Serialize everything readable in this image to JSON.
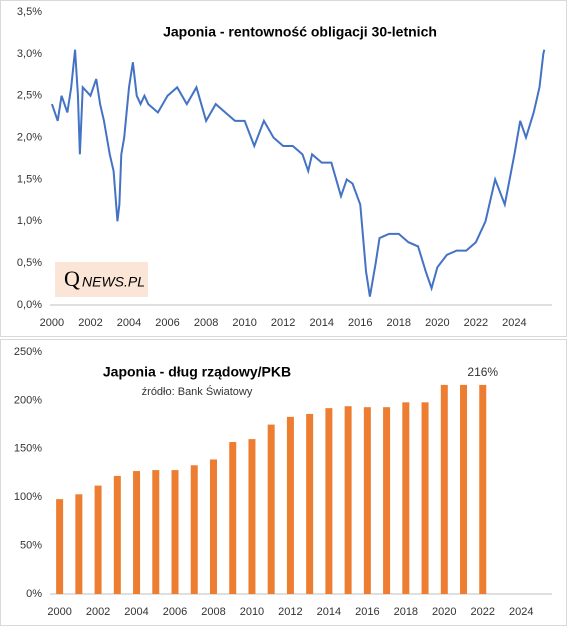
{
  "chart_data": [
    {
      "type": "line",
      "title": "Japonia  - rentowność obligacji 30-letnich",
      "color": "#4472c4",
      "x": [
        2000,
        2000.3,
        2000.5,
        2000.8,
        2001.0,
        2001.2,
        2001.35,
        2001.45,
        2001.6,
        2002.0,
        2002.3,
        2002.5,
        2002.7,
        2003.0,
        2003.2,
        2003.4,
        2003.5,
        2003.6,
        2003.75,
        2004.0,
        2004.2,
        2004.4,
        2004.6,
        2004.8,
        2005.0,
        2005.5,
        2006.0,
        2006.5,
        2007.0,
        2007.5,
        2008.0,
        2008.5,
        2009.0,
        2009.5,
        2010.0,
        2010.5,
        2011.0,
        2011.5,
        2012.0,
        2012.5,
        2013.0,
        2013.3,
        2013.5,
        2014.0,
        2014.5,
        2015.0,
        2015.3,
        2015.6,
        2016.0,
        2016.3,
        2016.5,
        2016.8,
        2017.0,
        2017.5,
        2018.0,
        2018.5,
        2019.0,
        2019.4,
        2019.7,
        2020.0,
        2020.5,
        2021.0,
        2021.5,
        2022.0,
        2022.5,
        2023.0,
        2023.5,
        2024.0,
        2024.3,
        2024.6,
        2025.0,
        2025.3,
        2025.5,
        2025.55
      ],
      "values": [
        2.4,
        2.2,
        2.5,
        2.3,
        2.6,
        3.05,
        2.5,
        1.8,
        2.6,
        2.5,
        2.7,
        2.4,
        2.2,
        1.8,
        1.6,
        1.0,
        1.2,
        1.8,
        2.0,
        2.6,
        2.9,
        2.5,
        2.4,
        2.5,
        2.4,
        2.3,
        2.5,
        2.6,
        2.4,
        2.6,
        2.2,
        2.4,
        2.3,
        2.2,
        2.2,
        1.9,
        2.2,
        2.0,
        1.9,
        1.9,
        1.8,
        1.6,
        1.8,
        1.7,
        1.7,
        1.3,
        1.5,
        1.45,
        1.2,
        0.4,
        0.1,
        0.5,
        0.8,
        0.85,
        0.85,
        0.75,
        0.7,
        0.4,
        0.2,
        0.45,
        0.6,
        0.65,
        0.65,
        0.75,
        1.0,
        1.5,
        1.2,
        1.8,
        2.2,
        2.0,
        2.3,
        2.6,
        3.0,
        3.05
      ],
      "xlim": [
        1999.9,
        2025.95
      ],
      "xticks": [
        2000,
        2002,
        2004,
        2006,
        2008,
        2010,
        2012,
        2014,
        2016,
        2018,
        2020,
        2022,
        2024
      ],
      "ylim": [
        0,
        3.5
      ],
      "yticks": [
        {
          "value": 0,
          "label": "0,0%"
        },
        {
          "value": 0.5,
          "label": "0,5%"
        },
        {
          "value": 1,
          "label": "1,0%"
        },
        {
          "value": 1.5,
          "label": "1,5%"
        },
        {
          "value": 2,
          "label": "2,0%"
        },
        {
          "value": 2.5,
          "label": "2,5%"
        },
        {
          "value": 3,
          "label": "3,0%"
        },
        {
          "value": 3.5,
          "label": "3,5%"
        }
      ]
    },
    {
      "type": "bar",
      "title": "Japonia  - dług rządowy/PKB",
      "subtitle": "źródło: Bank Światowy",
      "color": "#ed7d31",
      "x": [
        2000,
        2001,
        2002,
        2003,
        2004,
        2005,
        2006,
        2007,
        2008,
        2009,
        2010,
        2011,
        2012,
        2013,
        2014,
        2015,
        2016,
        2017,
        2018,
        2019,
        2020,
        2021,
        2022
      ],
      "values": [
        98,
        103,
        112,
        122,
        127,
        128,
        128,
        133,
        139,
        157,
        160,
        175,
        183,
        186,
        192,
        194,
        193,
        193,
        198,
        198,
        216,
        216,
        216
      ],
      "value_labels": [
        null,
        null,
        null,
        null,
        null,
        null,
        null,
        null,
        null,
        null,
        null,
        null,
        null,
        null,
        null,
        null,
        null,
        null,
        null,
        null,
        null,
        null,
        "216%"
      ],
      "xlim": [
        1999.5,
        2025.6
      ],
      "xticks": [
        2000,
        2002,
        2004,
        2006,
        2008,
        2010,
        2012,
        2014,
        2016,
        2018,
        2020,
        2022,
        2024
      ],
      "ylim": [
        0,
        250
      ],
      "yticks": [
        {
          "value": 0,
          "label": "0%"
        },
        {
          "value": 50,
          "label": "50%"
        },
        {
          "value": 100,
          "label": "100%"
        },
        {
          "value": 150,
          "label": "150%"
        },
        {
          "value": 200,
          "label": "200%"
        },
        {
          "value": 250,
          "label": "250%"
        }
      ]
    }
  ],
  "logo": {
    "initial": "Q",
    "rest": "NEWS.PL"
  }
}
